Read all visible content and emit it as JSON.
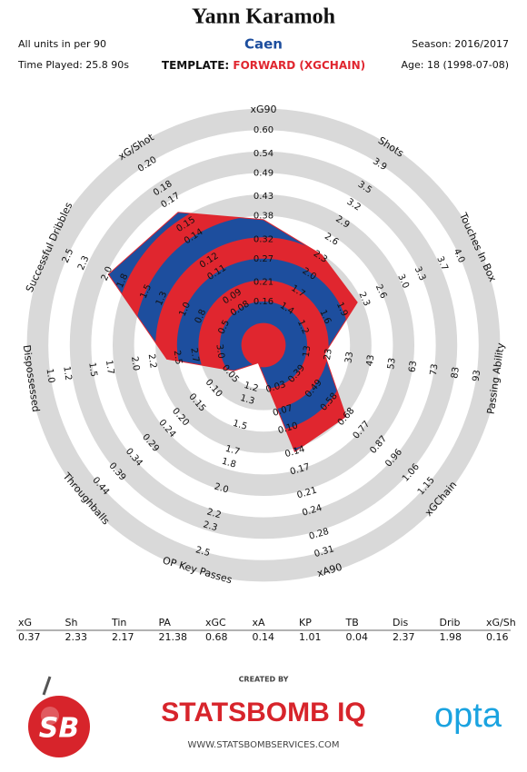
{
  "chart_data": {
    "type": "radar",
    "title": "Yann Karamoh",
    "team": "Caen",
    "template_label": "TEMPLATE:",
    "template": "FORWARD (XGCHAIN)",
    "notes_left": [
      "All units in per 90",
      "Time Played: 25.8 90s"
    ],
    "notes_right": [
      "Season: 2016/2017",
      "Age: 18 (1998-07-08)"
    ],
    "categories": [
      "xG90",
      "Shots",
      "Touches In Box",
      "Passing Ability",
      "xGChain",
      "xA90",
      "OP Key Passes",
      "Throughballs",
      "Dispossessed",
      "Successful Dribbles",
      "xG/Shot"
    ],
    "table_headers": [
      "xG",
      "Sh",
      "Tin",
      "PA",
      "xGC",
      "xA",
      "KP",
      "TB",
      "Dis",
      "Drib",
      "xG/Sh"
    ],
    "values": [
      0.37,
      2.33,
      2.17,
      21.38,
      0.68,
      0.14,
      1.01,
      0.04,
      2.37,
      1.98,
      0.16
    ],
    "colors": [
      "#e0262f",
      "#1d4e9e"
    ],
    "axis_ticks": [
      [
        0.16,
        0.21,
        0.27,
        0.32,
        0.38,
        0.43,
        0.49,
        0.54,
        {
          "value": 0.6,
          "label": "0.60"
        }
      ],
      [
        1.4,
        1.7,
        {
          "value": 2,
          "label": "2.0"
        },
        2.3,
        2.6,
        2.9,
        3.2,
        3.5,
        3.9
      ],
      [
        1.2,
        1.6,
        1.9,
        2.3,
        2.6,
        {
          "value": 3,
          "label": "3.0"
        },
        3.3,
        3.7,
        {
          "value": 4,
          "label": "4.0"
        }
      ],
      [
        13,
        23,
        33,
        43,
        53,
        63,
        73,
        83,
        93
      ],
      [
        0.39,
        0.49,
        0.58,
        0.68,
        0.77,
        0.87,
        0.96,
        1.06,
        1.15
      ],
      [
        0.03,
        0.07,
        {
          "value": 0.1,
          "label": "0.10"
        },
        0.14,
        0.17,
        0.21,
        0.24,
        0.28,
        0.31
      ],
      [
        1.2,
        1.3,
        1.5,
        1.7,
        1.8,
        {
          "value": 2,
          "label": "2.0"
        },
        2.2,
        2.3,
        2.5
      ],
      [
        0.05,
        {
          "value": 0.1,
          "label": "0.10"
        },
        0.15,
        {
          "value": 0.2,
          "label": "0.20"
        },
        0.24,
        0.29,
        0.34,
        0.39,
        0.44
      ],
      [
        {
          "value": 3,
          "label": "3.0"
        },
        2.7,
        2.5,
        2.2,
        {
          "value": 2,
          "label": "2.0"
        },
        1.7,
        1.5,
        1.2,
        {
          "value": 1,
          "label": "1.0"
        }
      ],
      [
        0.5,
        0.8,
        {
          "value": 1,
          "label": "1.0"
        },
        1.3,
        1.5,
        1.8,
        {
          "value": 2,
          "label": "2.0"
        },
        2.3,
        2.5
      ],
      [
        0.08,
        0.09,
        0.11,
        0.12,
        0.14,
        0.15,
        0.17,
        0.18,
        {
          "value": 0.2,
          "label": "0.20"
        }
      ]
    ]
  },
  "footer": {
    "logo": "SB",
    "created_by": "CREATED BY",
    "brand": "STATSBOMB IQ",
    "provider": "opta",
    "url": "WWW.STATSBOMBSERVICES.COM"
  }
}
